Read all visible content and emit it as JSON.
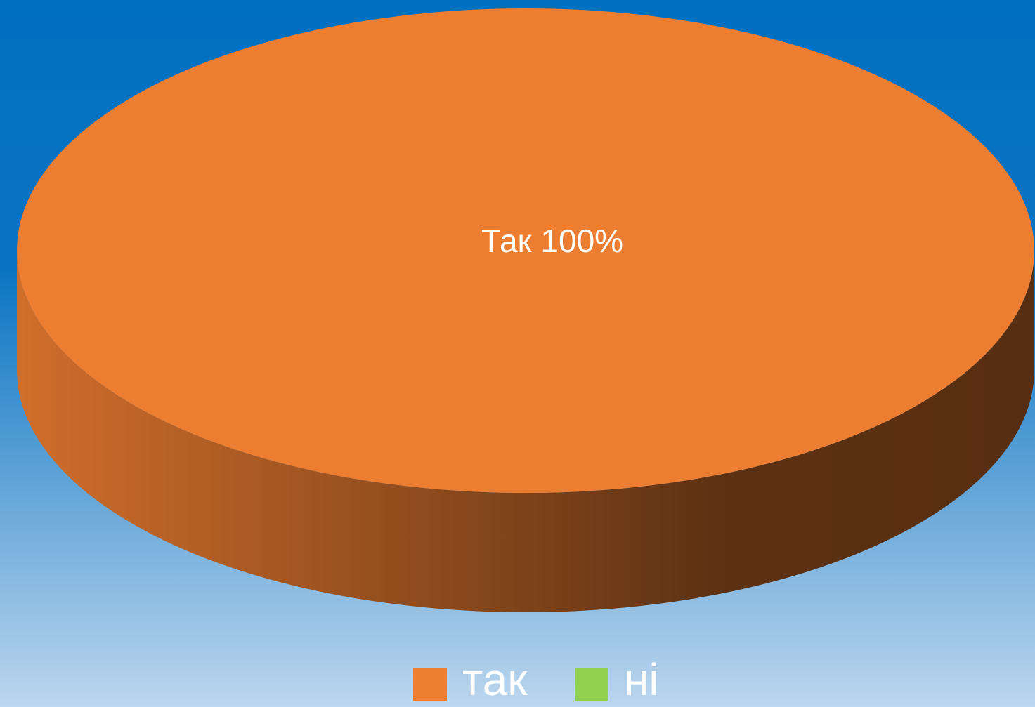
{
  "chart_data": {
    "type": "pie",
    "categories": [
      "так",
      "ні"
    ],
    "values": [
      100,
      0
    ],
    "value_labels": [
      "Так 100%",
      null
    ],
    "colors": [
      "#ed7d31",
      "#92d050"
    ],
    "legend": "bottom"
  }
}
